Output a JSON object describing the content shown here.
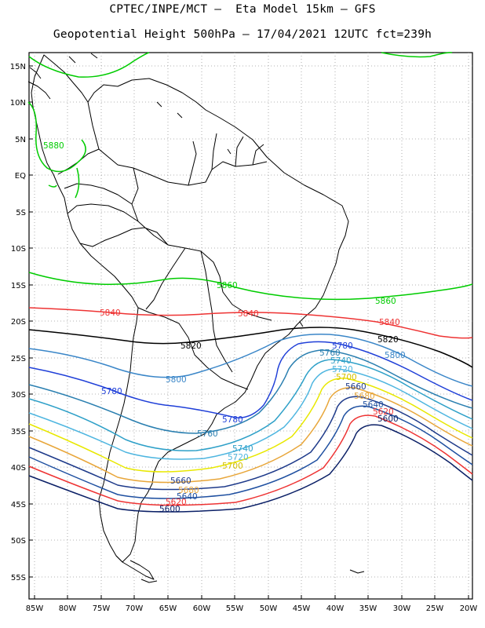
{
  "title": {
    "line1": "CPTEC/INPE/MCT –  Eta Model 15km – GFS",
    "line2": "Geopotential Height 500hPa – 17/04/2021 12UTC fct=239h"
  },
  "axes": {
    "lat_labels": [
      "15N",
      "10N",
      "5N",
      "EQ",
      "5S",
      "10S",
      "15S",
      "20S",
      "25S",
      "30S",
      "35S",
      "40S",
      "45S",
      "50S",
      "55S"
    ],
    "lon_labels": [
      "85W",
      "80W",
      "75W",
      "70W",
      "65W",
      "60W",
      "55W",
      "50W",
      "45W",
      "40W",
      "35W",
      "30W",
      "25W",
      "20W"
    ]
  },
  "contours": [
    {
      "value": "5880",
      "color": "#00cc00"
    },
    {
      "value": "5860",
      "color": "#00cc00"
    },
    {
      "value": "5840",
      "color": "#ee3333"
    },
    {
      "value": "5820",
      "color": "#000000"
    },
    {
      "value": "5800",
      "color": "#3a86c8"
    },
    {
      "value": "5780",
      "color": "#1f3fd8"
    },
    {
      "value": "5760",
      "color": "#2a7fb0"
    },
    {
      "value": "5740",
      "color": "#2ea0c8"
    },
    {
      "value": "5720",
      "color": "#4fb6e0"
    },
    {
      "value": "5700",
      "color": "#f2f200"
    },
    {
      "value": "5680",
      "color": "#e8a63a"
    },
    {
      "value": "5660",
      "color": "#1e3a8a"
    },
    {
      "value": "5640",
      "color": "#1e4fa0"
    },
    {
      "value": "5620",
      "color": "#ee3333"
    },
    {
      "value": "5600",
      "color": "#0a1f66"
    }
  ],
  "contour_labels": {
    "g5880": "5880",
    "g5860a": "5860",
    "g5860b": "5860",
    "r5840a": "5840",
    "r5840b": "5840",
    "r5840c": "5840",
    "k5820a": "5820",
    "k5820b": "5820",
    "c5800a": "5800",
    "c5800b": "5800",
    "b5780a": "5780",
    "b5780b": "5780",
    "b5780c": "5780",
    "c5760a": "5760",
    "c5760b": "5760",
    "c5740a": "5740",
    "c5740b": "5740",
    "c5720a": "5720",
    "c5720b": "5720",
    "y5700a": "5700",
    "y5700b": "5700",
    "o5680a": "5680",
    "o5680b": "5680",
    "n5660a": "5660",
    "n5660b": "5660",
    "n5640a": "5640",
    "n5640b": "5640",
    "r5620a": "5620",
    "r5620b": "5620",
    "d5600a": "5600",
    "d5600b": "5600"
  }
}
